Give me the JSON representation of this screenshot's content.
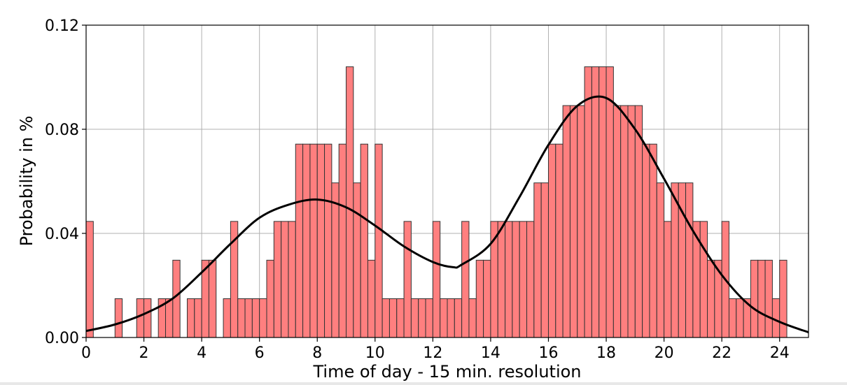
{
  "chart_data": {
    "type": "bar",
    "title": "",
    "xlabel": "Time of day - 15 min. resolution",
    "ylabel": "Probability in %",
    "xlim": [
      0,
      25
    ],
    "ylim": [
      0,
      0.12
    ],
    "grid": true,
    "x_ticks": [
      "0",
      "2",
      "4",
      "6",
      "8",
      "10",
      "12",
      "14",
      "16",
      "18",
      "20",
      "22",
      "24"
    ],
    "y_ticks": [
      "0.00",
      "0.04",
      "0.08",
      "0.12"
    ],
    "bar_color": "#ff7f7f",
    "bar_edge_color": "#333333",
    "bin_width": 0.25,
    "bins": [
      {
        "x": 0.0,
        "y": 0.0446
      },
      {
        "x": 1.0,
        "y": 0.0149
      },
      {
        "x": 1.75,
        "y": 0.0149
      },
      {
        "x": 2.0,
        "y": 0.0149
      },
      {
        "x": 2.5,
        "y": 0.0149
      },
      {
        "x": 2.75,
        "y": 0.0149
      },
      {
        "x": 3.0,
        "y": 0.0297
      },
      {
        "x": 3.5,
        "y": 0.0149
      },
      {
        "x": 3.75,
        "y": 0.0149
      },
      {
        "x": 4.0,
        "y": 0.0297
      },
      {
        "x": 4.25,
        "y": 0.0297
      },
      {
        "x": 4.75,
        "y": 0.0149
      },
      {
        "x": 5.0,
        "y": 0.0446
      },
      {
        "x": 5.25,
        "y": 0.0149
      },
      {
        "x": 5.5,
        "y": 0.0149
      },
      {
        "x": 5.75,
        "y": 0.0149
      },
      {
        "x": 6.0,
        "y": 0.0149
      },
      {
        "x": 6.25,
        "y": 0.0297
      },
      {
        "x": 6.5,
        "y": 0.0446
      },
      {
        "x": 6.75,
        "y": 0.0446
      },
      {
        "x": 7.0,
        "y": 0.0446
      },
      {
        "x": 7.25,
        "y": 0.0743
      },
      {
        "x": 7.5,
        "y": 0.0743
      },
      {
        "x": 7.75,
        "y": 0.0743
      },
      {
        "x": 8.0,
        "y": 0.0743
      },
      {
        "x": 8.25,
        "y": 0.0743
      },
      {
        "x": 8.5,
        "y": 0.0594
      },
      {
        "x": 8.75,
        "y": 0.0743
      },
      {
        "x": 9.0,
        "y": 0.104
      },
      {
        "x": 9.25,
        "y": 0.0594
      },
      {
        "x": 9.5,
        "y": 0.0743
      },
      {
        "x": 9.75,
        "y": 0.0297
      },
      {
        "x": 10.0,
        "y": 0.0743
      },
      {
        "x": 10.25,
        "y": 0.0149
      },
      {
        "x": 10.5,
        "y": 0.0149
      },
      {
        "x": 10.75,
        "y": 0.0149
      },
      {
        "x": 11.0,
        "y": 0.0446
      },
      {
        "x": 11.25,
        "y": 0.0149
      },
      {
        "x": 11.5,
        "y": 0.0149
      },
      {
        "x": 11.75,
        "y": 0.0149
      },
      {
        "x": 12.0,
        "y": 0.0446
      },
      {
        "x": 12.25,
        "y": 0.0149
      },
      {
        "x": 12.5,
        "y": 0.0149
      },
      {
        "x": 12.75,
        "y": 0.0149
      },
      {
        "x": 13.0,
        "y": 0.0446
      },
      {
        "x": 13.25,
        "y": 0.0149
      },
      {
        "x": 13.5,
        "y": 0.0297
      },
      {
        "x": 13.75,
        "y": 0.0297
      },
      {
        "x": 14.0,
        "y": 0.0446
      },
      {
        "x": 14.25,
        "y": 0.0446
      },
      {
        "x": 14.5,
        "y": 0.0446
      },
      {
        "x": 14.75,
        "y": 0.0446
      },
      {
        "x": 15.0,
        "y": 0.0446
      },
      {
        "x": 15.25,
        "y": 0.0446
      },
      {
        "x": 15.5,
        "y": 0.0594
      },
      {
        "x": 15.75,
        "y": 0.0594
      },
      {
        "x": 16.0,
        "y": 0.0743
      },
      {
        "x": 16.25,
        "y": 0.0743
      },
      {
        "x": 16.5,
        "y": 0.0891
      },
      {
        "x": 16.75,
        "y": 0.0891
      },
      {
        "x": 17.0,
        "y": 0.0891
      },
      {
        "x": 17.25,
        "y": 0.104
      },
      {
        "x": 17.5,
        "y": 0.104
      },
      {
        "x": 17.75,
        "y": 0.104
      },
      {
        "x": 18.0,
        "y": 0.104
      },
      {
        "x": 18.25,
        "y": 0.0891
      },
      {
        "x": 18.5,
        "y": 0.0891
      },
      {
        "x": 18.75,
        "y": 0.0891
      },
      {
        "x": 19.0,
        "y": 0.0891
      },
      {
        "x": 19.25,
        "y": 0.0743
      },
      {
        "x": 19.5,
        "y": 0.0743
      },
      {
        "x": 19.75,
        "y": 0.0594
      },
      {
        "x": 20.0,
        "y": 0.0446
      },
      {
        "x": 20.25,
        "y": 0.0594
      },
      {
        "x": 20.5,
        "y": 0.0594
      },
      {
        "x": 20.75,
        "y": 0.0594
      },
      {
        "x": 21.0,
        "y": 0.0446
      },
      {
        "x": 21.25,
        "y": 0.0446
      },
      {
        "x": 21.5,
        "y": 0.0297
      },
      {
        "x": 21.75,
        "y": 0.0297
      },
      {
        "x": 22.0,
        "y": 0.0446
      },
      {
        "x": 22.25,
        "y": 0.0149
      },
      {
        "x": 22.5,
        "y": 0.0149
      },
      {
        "x": 22.75,
        "y": 0.0149
      },
      {
        "x": 23.0,
        "y": 0.0297
      },
      {
        "x": 23.25,
        "y": 0.0297
      },
      {
        "x": 23.5,
        "y": 0.0297
      },
      {
        "x": 23.75,
        "y": 0.0149
      },
      {
        "x": 24.0,
        "y": 0.0297
      }
    ],
    "fit_curve": {
      "type": "line",
      "color": "#000000",
      "x": [
        0,
        1,
        2,
        3,
        4,
        5,
        6,
        7,
        8,
        9,
        10,
        11,
        12,
        12.7,
        13,
        14,
        15,
        16,
        17,
        18,
        19,
        20,
        21,
        22,
        23,
        24,
        25
      ],
      "y": [
        0.0025,
        0.005,
        0.009,
        0.015,
        0.025,
        0.036,
        0.046,
        0.051,
        0.053,
        0.05,
        0.043,
        0.035,
        0.029,
        0.027,
        0.028,
        0.036,
        0.054,
        0.074,
        0.089,
        0.092,
        0.08,
        0.061,
        0.041,
        0.024,
        0.012,
        0.006,
        0.002
      ]
    }
  }
}
